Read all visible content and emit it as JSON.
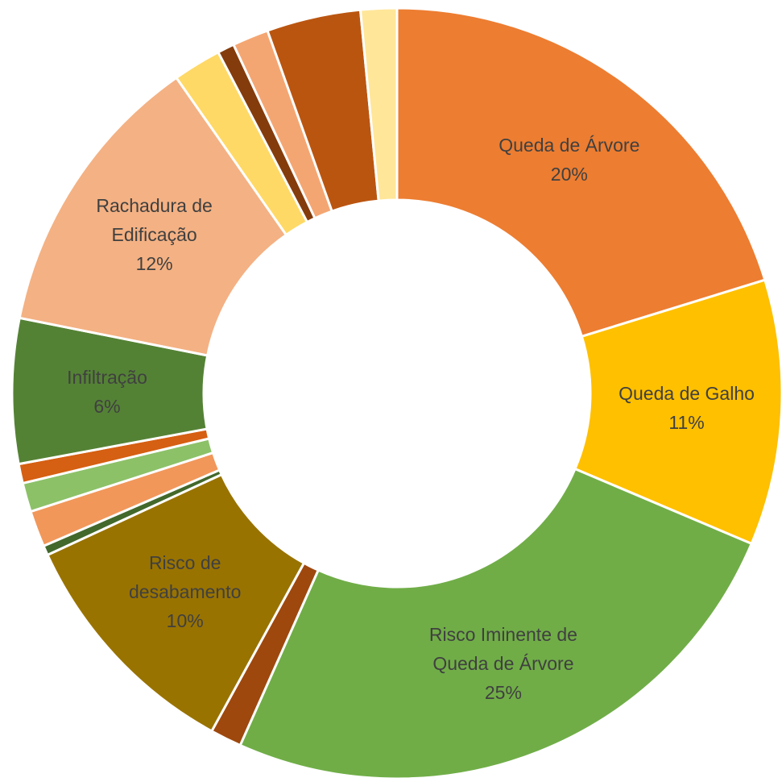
{
  "chart_data": {
    "type": "donut",
    "categories": [
      "Queda de Árvore",
      "Queda de Galho",
      "Risco Iminente de Queda de Árvore",
      null,
      "Risco de desabamento",
      null,
      null,
      null,
      null,
      "Infiltração",
      "Rachadura de Edificação",
      null,
      null,
      null,
      null,
      null
    ],
    "values": [
      20,
      11,
      25,
      1.3,
      10,
      0.4,
      1.5,
      1.2,
      0.8,
      6,
      12,
      2.0,
      0.7,
      1.5,
      3.9,
      1.5
    ],
    "value_labels": [
      "20%",
      "11%",
      "25%",
      null,
      "10%",
      null,
      null,
      null,
      null,
      "6%",
      "12%",
      null,
      null,
      null,
      null,
      null
    ],
    "colors": [
      "#ED7D31",
      "#FFC000",
      "#70AD47",
      "#9E480E",
      "#997300",
      "#43682B",
      "#F1975A",
      "#8CC168",
      "#D55F12",
      "#548235",
      "#F4B183",
      "#FFD966",
      "#843C0C",
      "#F4A672",
      "#BA5510",
      "#FFE699"
    ]
  }
}
